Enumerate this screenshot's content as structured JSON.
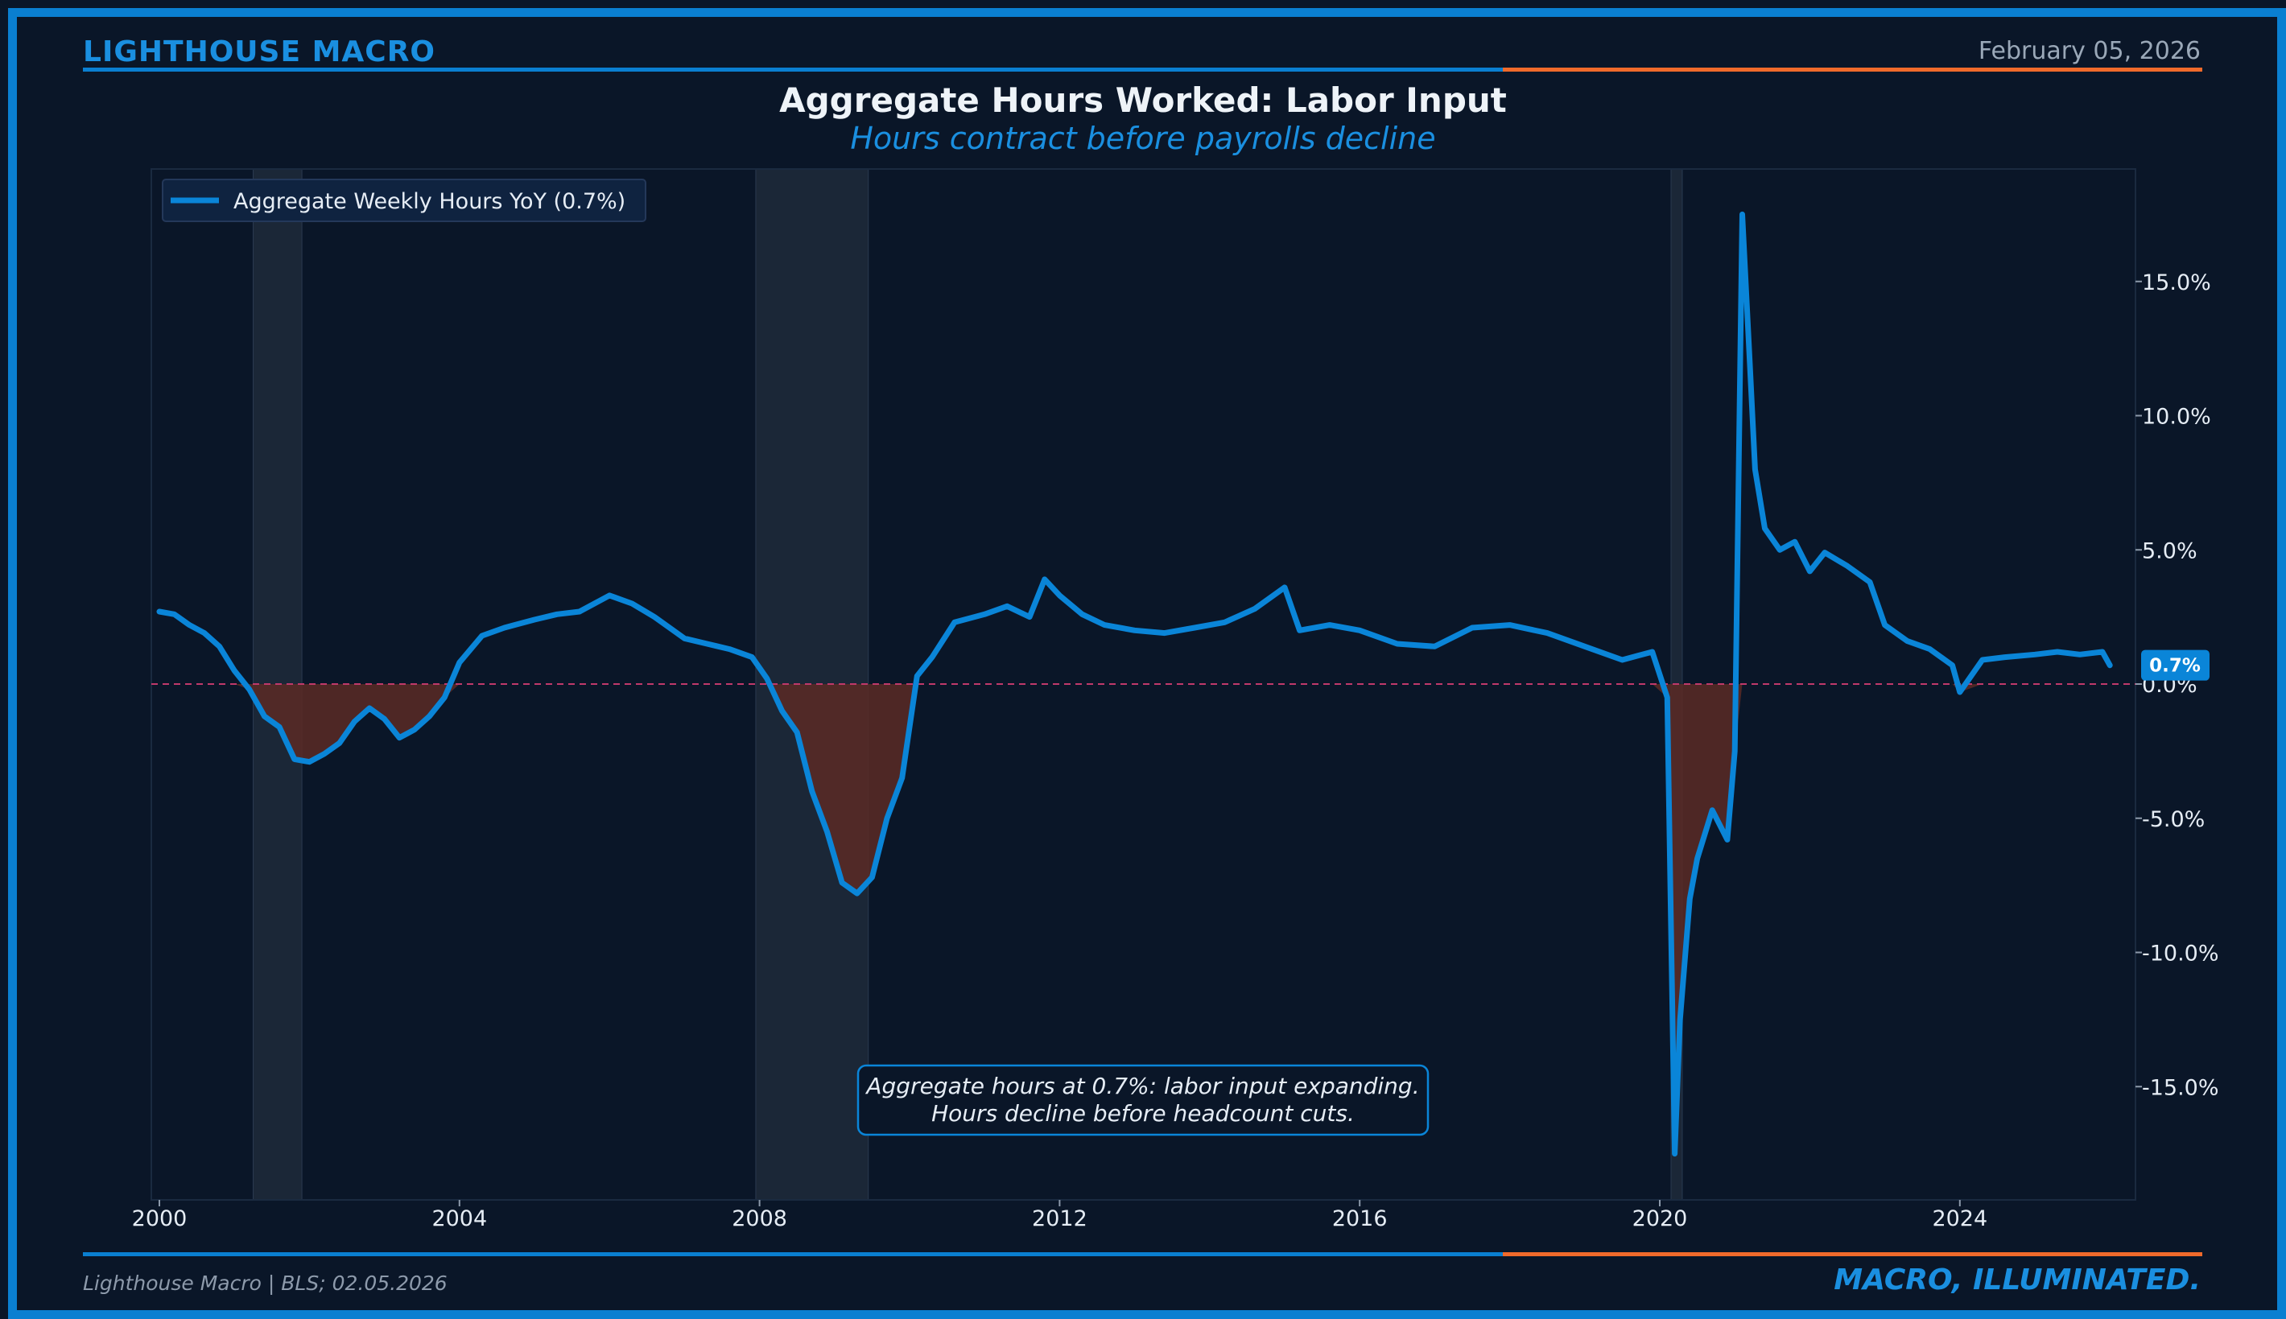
{
  "header": {
    "brand": "LIGHTHOUSE MACRO",
    "date": "February 05, 2026"
  },
  "footer": {
    "source": "Lighthouse Macro | BLS; 02.05.2026",
    "tagline": "MACRO, ILLUMINATED."
  },
  "colors": {
    "line": "#0a85d8",
    "accent_orange": "#f06a2b",
    "negative_fill": "#5a2a24",
    "zero_line": "#c0396b",
    "recession": "#1b2737"
  },
  "chart_data": {
    "type": "line",
    "title": "Aggregate Hours Worked: Labor Input",
    "subtitle": "Hours contract before payrolls decline",
    "legend": {
      "position": "top-left",
      "entries": [
        "Aggregate Weekly Hours YoY (0.7%)"
      ]
    },
    "xlim": [
      2000,
      2026.5
    ],
    "ylim": [
      -19,
      19
    ],
    "x_ticks": [
      2000,
      2004,
      2008,
      2012,
      2016,
      2020,
      2024
    ],
    "x_tick_labels": [
      "2000",
      "2004",
      "2008",
      "2012",
      "2016",
      "2020",
      "2024"
    ],
    "y_ticks": [
      15,
      10,
      5,
      0,
      -5,
      -10,
      -15
    ],
    "y_tick_labels": [
      "15.0%",
      "10.0%",
      "5.0%",
      "0.0%",
      "-5.0%",
      "-10.0%",
      "-15.0%"
    ],
    "last_value_label": "0.7%",
    "recessions": [
      [
        2001.25,
        2001.9
      ],
      [
        2007.95,
        2009.45
      ],
      [
        2020.15,
        2020.3
      ]
    ],
    "annotation": "Aggregate hours at 0.7%: labor input expanding.\nHours decline before headcount cuts.",
    "series": [
      {
        "name": "Aggregate Weekly Hours YoY (0.7%)",
        "x": [
          2000.0,
          2000.2,
          2000.4,
          2000.6,
          2000.8,
          2001.0,
          2001.2,
          2001.4,
          2001.6,
          2001.8,
          2002.0,
          2002.2,
          2002.4,
          2002.6,
          2002.8,
          2003.0,
          2003.2,
          2003.4,
          2003.6,
          2003.8,
          2004.0,
          2004.3,
          2004.6,
          2005.0,
          2005.3,
          2005.6,
          2006.0,
          2006.3,
          2006.6,
          2007.0,
          2007.3,
          2007.6,
          2007.9,
          2008.1,
          2008.3,
          2008.5,
          2008.7,
          2008.9,
          2009.1,
          2009.3,
          2009.5,
          2009.7,
          2009.9,
          2010.1,
          2010.3,
          2010.6,
          2011.0,
          2011.3,
          2011.6,
          2011.8,
          2012.0,
          2012.3,
          2012.6,
          2013.0,
          2013.4,
          2013.8,
          2014.2,
          2014.6,
          2015.0,
          2015.2,
          2015.6,
          2016.0,
          2016.5,
          2017.0,
          2017.5,
          2018.0,
          2018.5,
          2019.0,
          2019.5,
          2019.9,
          2020.1,
          2020.2,
          2020.27,
          2020.4,
          2020.5,
          2020.7,
          2020.9,
          2021.0,
          2021.1,
          2021.2,
          2021.27,
          2021.4,
          2021.6,
          2021.8,
          2022.0,
          2022.2,
          2022.5,
          2022.8,
          2023.0,
          2023.3,
          2023.6,
          2023.9,
          2024.0,
          2024.3,
          2024.6,
          2025.0,
          2025.3,
          2025.6,
          2025.9,
          2026.0
        ],
        "y": [
          2.7,
          2.6,
          2.2,
          1.9,
          1.4,
          0.5,
          -0.2,
          -1.2,
          -1.6,
          -2.8,
          -2.9,
          -2.6,
          -2.2,
          -1.4,
          -0.9,
          -1.3,
          -2.0,
          -1.7,
          -1.2,
          -0.5,
          0.8,
          1.8,
          2.1,
          2.4,
          2.6,
          2.7,
          3.3,
          3.0,
          2.5,
          1.7,
          1.5,
          1.3,
          1.0,
          0.2,
          -1.0,
          -1.8,
          -4.0,
          -5.5,
          -7.4,
          -7.8,
          -7.2,
          -5.0,
          -3.5,
          0.3,
          1.0,
          2.3,
          2.6,
          2.9,
          2.5,
          3.9,
          3.3,
          2.6,
          2.2,
          2.0,
          1.9,
          2.1,
          2.3,
          2.8,
          3.6,
          2.0,
          2.2,
          2.0,
          1.5,
          1.4,
          2.1,
          2.2,
          1.9,
          1.4,
          0.9,
          1.2,
          -0.5,
          -17.5,
          -12.5,
          -8.0,
          -6.5,
          -4.7,
          -5.8,
          -2.5,
          17.5,
          12.0,
          8.0,
          5.8,
          5.0,
          5.3,
          4.2,
          4.9,
          4.4,
          3.8,
          2.2,
          1.6,
          1.3,
          0.7,
          -0.3,
          0.9,
          1.0,
          1.1,
          1.2,
          1.1,
          1.2,
          0.7
        ]
      }
    ]
  }
}
